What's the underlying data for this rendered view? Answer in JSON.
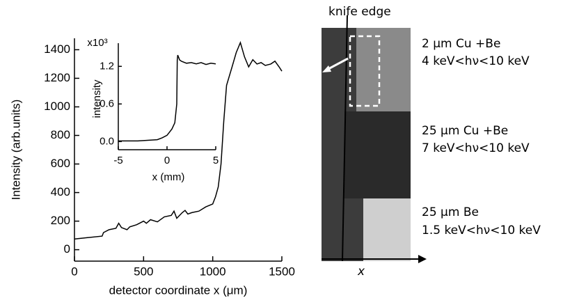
{
  "chart_data": [
    {
      "type": "line",
      "ylabel": "Intensity (arb.units)",
      "xlabel": "detector coordinate x (μm)",
      "x": [
        0,
        100,
        200,
        210,
        250,
        300,
        320,
        340,
        380,
        400,
        450,
        500,
        520,
        550,
        600,
        650,
        700,
        720,
        740,
        780,
        800,
        820,
        850,
        900,
        950,
        1000,
        1020,
        1040,
        1060,
        1080,
        1100,
        1140,
        1170,
        1200,
        1230,
        1260,
        1290,
        1320,
        1350,
        1380,
        1420,
        1450,
        1480,
        1500
      ],
      "series": [
        {
          "color": "#000000",
          "values": [
            75,
            85,
            95,
            120,
            140,
            150,
            185,
            155,
            140,
            160,
            175,
            200,
            185,
            210,
            195,
            230,
            240,
            270,
            220,
            260,
            275,
            250,
            260,
            270,
            300,
            320,
            370,
            440,
            600,
            900,
            1150,
            1280,
            1380,
            1450,
            1350,
            1280,
            1330,
            1300,
            1310,
            1290,
            1300,
            1320,
            1280,
            1250
          ]
        }
      ],
      "xlim": [
        0,
        1500
      ],
      "xticks": [
        0,
        500,
        1000,
        1500
      ],
      "ylim": [
        -80,
        1480
      ],
      "yticks": [
        0,
        200,
        400,
        600,
        800,
        1000,
        1200,
        1400
      ]
    },
    {
      "type": "line",
      "ylabel": "intensity",
      "xlabel": "x (mm)",
      "scale_label": "x10³",
      "x": [
        -5,
        -3,
        -2,
        -1,
        -0.5,
        0,
        0.5,
        0.8,
        1.0,
        1.05,
        1.1,
        1.3,
        1.5,
        2,
        2.5,
        3,
        3.5,
        4,
        4.5,
        5
      ],
      "series": [
        {
          "color": "#000000",
          "values": [
            0.01,
            0.01,
            0.02,
            0.03,
            0.06,
            0.1,
            0.2,
            0.3,
            0.6,
            1.3,
            1.38,
            1.3,
            1.28,
            1.25,
            1.26,
            1.24,
            1.26,
            1.23,
            1.25,
            1.24
          ]
        }
      ],
      "xlim": [
        -5,
        5
      ],
      "xticks": [
        -5,
        0,
        5
      ],
      "ylim": [
        -0.13,
        1.57
      ],
      "yticks": [
        {
          "value": 0,
          "label": "0.0"
        },
        0.6,
        1.2
      ]
    }
  ],
  "image_panel": {
    "edge_label": "knife edge",
    "axis_label": "x",
    "regions": [
      {
        "filter": "2 μm Cu +Be",
        "energy": "4 keV<hν<10 keV"
      },
      {
        "filter": "25 μm Cu +Be",
        "energy": "7 keV<hν<10 keV"
      },
      {
        "filter": "25 μm Be",
        "energy": "1.5 keV<hν<10 keV"
      }
    ]
  }
}
